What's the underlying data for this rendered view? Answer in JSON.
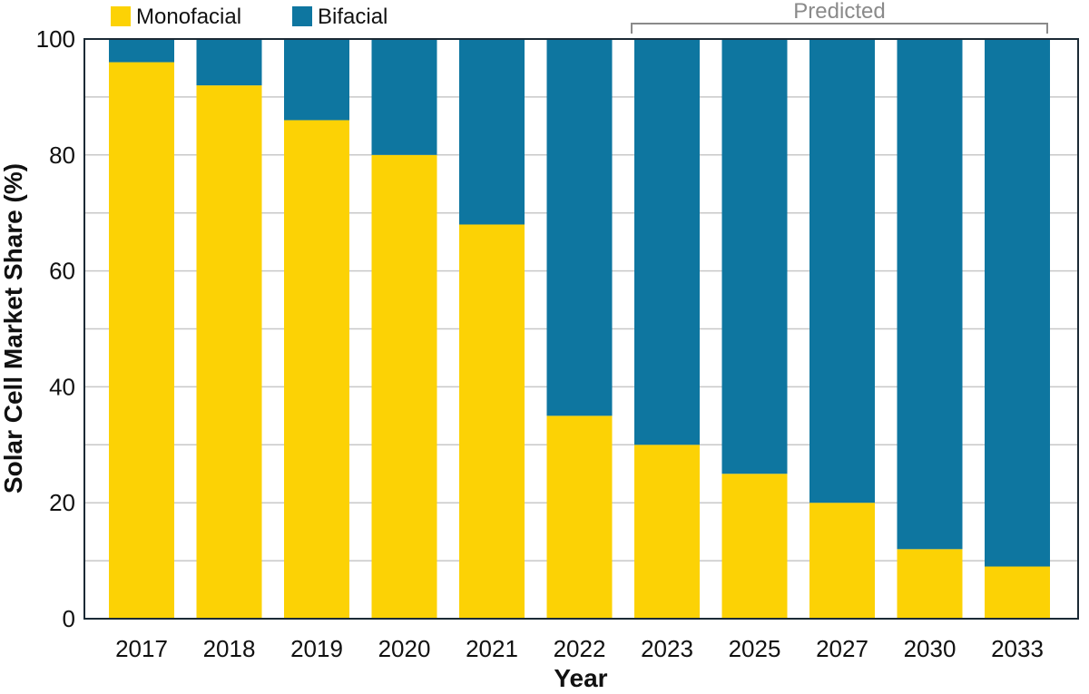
{
  "chart_data": {
    "type": "bar",
    "stacked": true,
    "categories": [
      "2017",
      "2018",
      "2019",
      "2020",
      "2021",
      "2022",
      "2023",
      "2025",
      "2027",
      "2030",
      "2033"
    ],
    "series": [
      {
        "name": "Monofacial",
        "color": "#fcd205",
        "values": [
          96,
          92,
          86,
          80,
          68,
          35,
          30,
          25,
          20,
          12,
          9
        ]
      },
      {
        "name": "Bifacial",
        "color": "#0e76a0",
        "values": [
          4,
          8,
          14,
          20,
          32,
          65,
          70,
          75,
          80,
          88,
          91
        ]
      }
    ],
    "xlabel": "Year",
    "ylabel": "Solar Cell Market Share (%)",
    "ylim": [
      0,
      100
    ],
    "yticks": [
      0,
      20,
      40,
      60,
      80,
      100
    ],
    "grid": true,
    "legend": "top-left",
    "annotation": {
      "text": "Predicted",
      "from": "2023",
      "to": "2033",
      "color": "#8a8a8a"
    }
  }
}
